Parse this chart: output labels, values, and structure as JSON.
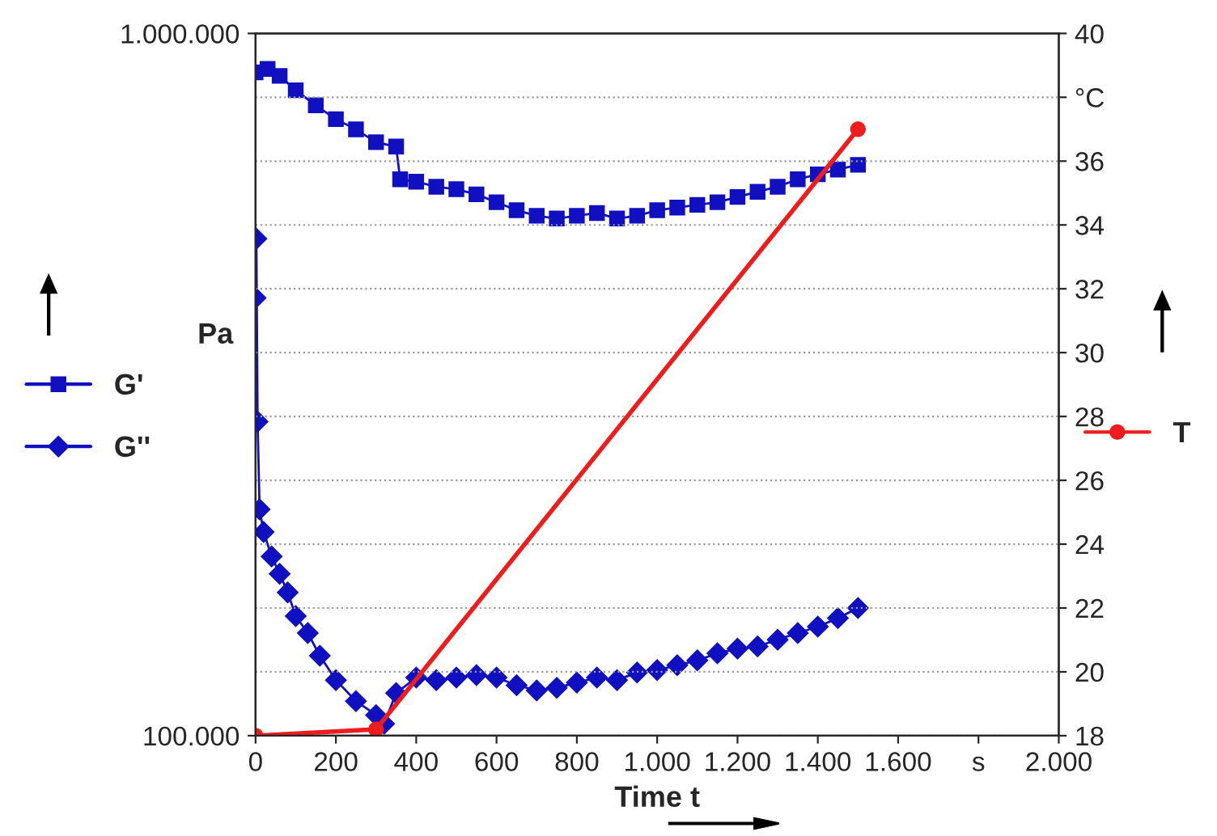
{
  "chart_data": {
    "type": "line",
    "xlabel": "Time t",
    "ylabel": "Pa",
    "xlim": [
      0,
      2000
    ],
    "xticks": [
      0,
      200,
      400,
      600,
      800,
      {
        "value": 1000,
        "label": "1.000"
      },
      {
        "value": 1200,
        "label": "1.200"
      },
      {
        "value": 1400,
        "label": "1.400"
      },
      {
        "value": 1600,
        "label": "1.600"
      },
      {
        "value": 1800,
        "label": "s"
      },
      {
        "value": 2000,
        "label": "2.000"
      }
    ],
    "log": "y",
    "ylim": [
      100000,
      1000000
    ],
    "yticks": [
      {
        "value": 100000,
        "label": "100.000"
      },
      {
        "value": 1000000,
        "label": "1.000.000"
      }
    ],
    "y2lim": [
      18,
      40
    ],
    "y2ticks": [
      18,
      20,
      22,
      24,
      26,
      28,
      30,
      32,
      34,
      36,
      {
        "value": 38,
        "label": "°C"
      },
      40
    ],
    "grid": "y",
    "legend": "left",
    "series": [
      {
        "name": "G'",
        "color": "#1010c0",
        "marker": "square",
        "x": [
          0,
          30,
          60,
          100,
          150,
          200,
          250,
          300,
          350,
          360,
          400,
          450,
          500,
          550,
          600,
          650,
          700,
          750,
          800,
          850,
          900,
          950,
          1000,
          1050,
          1100,
          1150,
          1200,
          1250,
          1300,
          1350,
          1400,
          1450,
          1500
        ],
        "values": [
          880000,
          890000,
          870000,
          830000,
          790000,
          755000,
          730000,
          700000,
          690000,
          620000,
          615000,
          605000,
          600000,
          590000,
          575000,
          560000,
          550000,
          545000,
          550000,
          555000,
          545000,
          550000,
          560000,
          565000,
          570000,
          575000,
          585000,
          595000,
          605000,
          620000,
          630000,
          640000,
          650000
        ]
      },
      {
        "name": "G''",
        "color": "#1010c0",
        "marker": "diamond",
        "x": [
          0,
          2,
          5,
          10,
          20,
          40,
          60,
          80,
          100,
          130,
          160,
          200,
          250,
          300,
          320,
          350,
          400,
          450,
          500,
          550,
          600,
          650,
          700,
          750,
          800,
          850,
          900,
          950,
          1000,
          1050,
          1100,
          1150,
          1200,
          1250,
          1300,
          1350,
          1400,
          1450,
          1500
        ],
        "values": [
          420000,
          510000,
          280000,
          210000,
          195000,
          180000,
          170000,
          160000,
          148000,
          140000,
          130000,
          120000,
          112000,
          107000,
          104000,
          115000,
          121000,
          120000,
          121000,
          122000,
          121000,
          118000,
          116000,
          117000,
          119000,
          121000,
          120000,
          123000,
          124000,
          126000,
          128000,
          131000,
          133000,
          134000,
          137000,
          140000,
          143000,
          147000,
          152000
        ]
      },
      {
        "name": "T",
        "color": "#ee1c1c",
        "marker": "circle",
        "axis": "y2",
        "x": [
          0,
          300,
          1500
        ],
        "values": [
          18,
          18.2,
          37
        ]
      }
    ]
  }
}
